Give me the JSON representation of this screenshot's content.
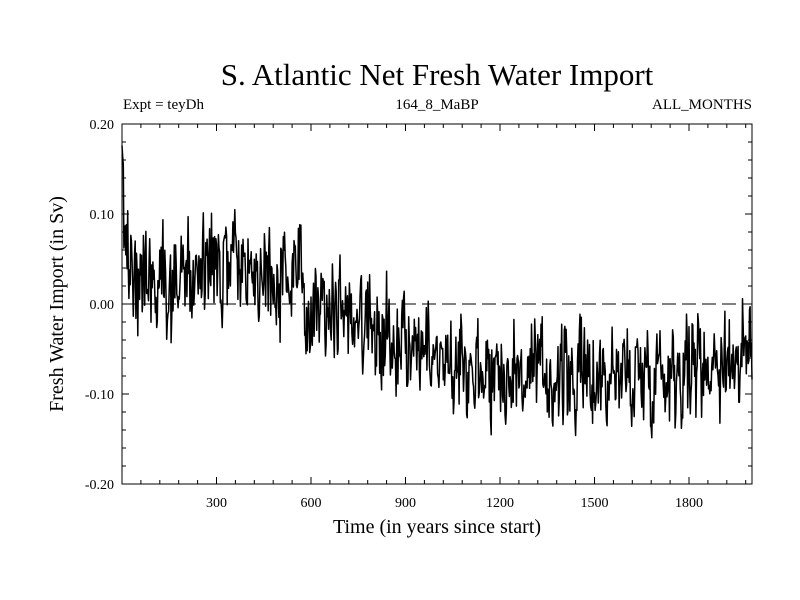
{
  "chart_data": {
    "type": "line",
    "title": "S. Atlantic Net Fresh Water Import",
    "annotations": {
      "left": "Expt = teyDh",
      "center": "164_8_MaBP",
      "right": "ALL_MONTHS"
    },
    "xlabel": "Time (in years since start)",
    "ylabel": "Fresh Water Import (in Sv)",
    "xlim": [
      0,
      2000
    ],
    "ylim": [
      -0.2,
      0.2
    ],
    "x_ticks": [
      300,
      600,
      900,
      1200,
      1500,
      1800
    ],
    "x_tick_labels": [
      "300",
      "600",
      "900",
      "1200",
      "1500",
      "1800"
    ],
    "y_ticks": [
      0.2,
      0.1,
      0.0,
      -0.1,
      -0.2
    ],
    "y_tick_labels": [
      "0.20",
      "0.10",
      "0.00",
      "-0.10",
      "-0.20"
    ],
    "reference_line": {
      "y": 0.0,
      "style": "dashed"
    },
    "series": [
      {
        "name": "Net fresh water import",
        "x_start": 0,
        "x_step": 2,
        "trend_x": [
          0,
          5,
          15,
          40,
          100,
          200,
          320,
          420,
          500,
          560,
          640,
          720,
          800,
          900,
          1000,
          1100,
          1200,
          1300,
          1400,
          1500,
          1600,
          1700,
          1800,
          1900,
          2000
        ],
        "trend_y": [
          0.16,
          0.1,
          0.05,
          0.035,
          0.03,
          0.03,
          0.04,
          0.035,
          0.03,
          0.022,
          0.005,
          -0.008,
          -0.025,
          -0.042,
          -0.058,
          -0.068,
          -0.075,
          -0.079,
          -0.082,
          -0.081,
          -0.078,
          -0.073,
          -0.068,
          -0.062,
          -0.058
        ],
        "noise_amplitude": 0.028,
        "min_value": -0.158,
        "max_value": 0.176
      }
    ]
  }
}
